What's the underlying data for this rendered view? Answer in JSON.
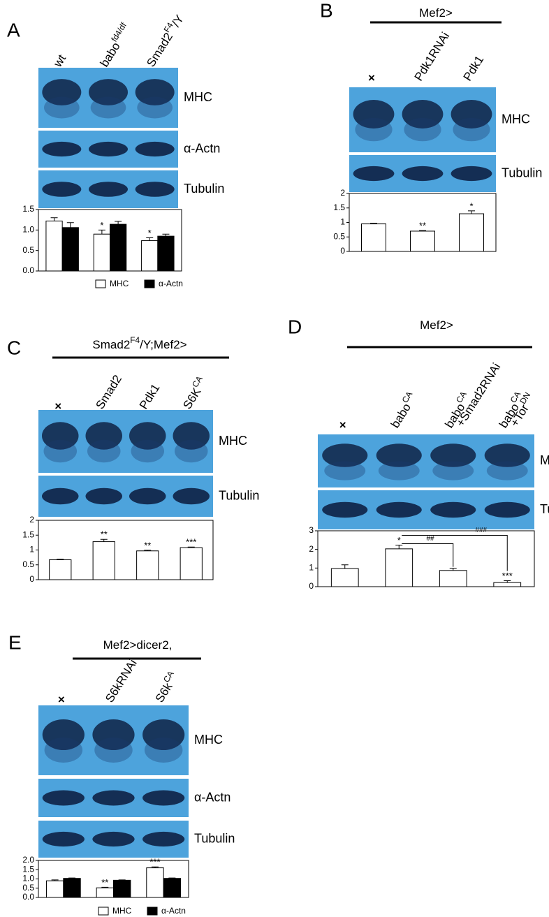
{
  "chart_data": [
    {
      "type": "bar",
      "panel": "A",
      "lanes": [
        [
          [
            {
              "text": "wt"
            }
          ]
        ],
        [
          [
            {
              "text": "babo"
            },
            {
              "sup": "fd4/df"
            }
          ]
        ],
        [
          [
            {
              "text": "Smad2"
            },
            {
              "sup": "F4"
            },
            {
              "text": "/Y"
            }
          ]
        ]
      ],
      "blots": [
        "MHC",
        "α-Actn",
        "Tubulin"
      ],
      "categories": [
        null,
        null,
        null
      ],
      "series": [
        {
          "name": "MHC",
          "color": "#ffffff",
          "values": [
            1.22,
            0.9,
            0.74
          ],
          "errors": [
            0.08,
            0.1,
            0.07
          ],
          "annotations": [
            null,
            "*",
            "*"
          ]
        },
        {
          "name": "α-Actn",
          "color": "#000000",
          "values": [
            1.06,
            1.14,
            0.85
          ],
          "errors": [
            0.12,
            0.07,
            0.05
          ]
        }
      ],
      "ylim": [
        0,
        1.5
      ],
      "yticks": [
        {
          "value": 0,
          "label": "0.0"
        },
        0.5,
        {
          "value": 1,
          "label": "1.0"
        },
        1.5
      ],
      "legend": "bottom"
    },
    {
      "type": "bar",
      "panel": "B",
      "header": [
        {
          "text": "Mef2>"
        }
      ],
      "lanes": [
        [
          [
            {
              "text": "×"
            }
          ]
        ],
        [
          [
            {
              "text": "Pdk1RNAi"
            }
          ]
        ],
        [
          [
            {
              "text": "Pdk1"
            }
          ]
        ]
      ],
      "blots": [
        "MHC",
        "Tubulin"
      ],
      "categories": [
        null,
        null,
        null
      ],
      "series": [
        {
          "color": "#ffffff",
          "values": [
            0.95,
            0.7,
            1.3
          ],
          "errors": [
            0.02,
            0.02,
            0.1
          ],
          "annotations": [
            null,
            "**",
            "*"
          ]
        }
      ],
      "ylim": [
        0,
        2
      ],
      "yticks": [
        0,
        0.5,
        1,
        1.5,
        2
      ]
    },
    {
      "type": "bar",
      "panel": "C",
      "header": [
        {
          "text": "Smad2"
        },
        {
          "sup": "F4"
        },
        {
          "text": "/Y;Mef2>"
        }
      ],
      "lanes": [
        [
          [
            {
              "text": "×"
            }
          ]
        ],
        [
          [
            {
              "text": "Smad2"
            }
          ]
        ],
        [
          [
            {
              "text": "Pdk1"
            }
          ]
        ],
        [
          [
            {
              "text": "S6K"
            },
            {
              "sup": "CA"
            }
          ]
        ]
      ],
      "blots": [
        "MHC",
        "Tubulin"
      ],
      "categories": [
        null,
        null,
        null,
        null
      ],
      "series": [
        {
          "color": "#ffffff",
          "values": [
            0.67,
            1.28,
            0.97,
            1.08
          ],
          "errors": [
            0.02,
            0.08,
            0.02,
            0.02
          ],
          "annotations": [
            null,
            "**",
            "**",
            "***"
          ]
        }
      ],
      "ylim": [
        0,
        2
      ],
      "yticks": [
        0,
        0.5,
        1,
        1.5,
        2
      ]
    },
    {
      "type": "bar",
      "panel": "D",
      "header": [
        {
          "text": "Mef2>"
        }
      ],
      "lanes": [
        [
          [
            {
              "text": "×"
            }
          ]
        ],
        [
          [
            {
              "text": "babo"
            },
            {
              "sup": "CA"
            }
          ]
        ],
        [
          [
            {
              "text": "babo"
            },
            {
              "sup": "CA"
            }
          ],
          [
            {
              "text": "+Smad2RNAi"
            }
          ]
        ],
        [
          [
            {
              "text": "babo"
            },
            {
              "sup": "CA"
            }
          ],
          [
            {
              "text": "+Tor"
            },
            {
              "sup": "DN"
            }
          ]
        ]
      ],
      "blots": [
        "MHC",
        "Tubulin"
      ],
      "categories": [
        null,
        null,
        null,
        null
      ],
      "series": [
        {
          "color": "#ffffff",
          "values": [
            0.97,
            2.03,
            0.87,
            0.22
          ],
          "errors": [
            0.2,
            0.2,
            0.12,
            0.1
          ],
          "annotations": [
            null,
            "*",
            null,
            "***"
          ]
        }
      ],
      "comparisons": [
        "##",
        "###"
      ],
      "ylim": [
        0,
        3
      ],
      "yticks": [
        0,
        1,
        2,
        3
      ]
    },
    {
      "type": "bar",
      "panel": "E",
      "header": [
        {
          "text": "Mef2>dicer2,"
        }
      ],
      "lanes": [
        [
          [
            {
              "text": "×"
            }
          ]
        ],
        [
          [
            {
              "text": "S6kRNAi"
            }
          ]
        ],
        [
          [
            {
              "text": "S6k"
            },
            {
              "sup": "CA"
            }
          ]
        ]
      ],
      "blots": [
        "MHC",
        "α-Actn",
        "Tubulin"
      ],
      "categories": [
        null,
        null,
        null
      ],
      "series": [
        {
          "name": "MHC",
          "color": "#ffffff",
          "values": [
            0.9,
            0.52,
            1.6
          ],
          "errors": [
            0.05,
            0.03,
            0.05
          ],
          "annotations": [
            null,
            "**",
            "***"
          ]
        },
        {
          "name": "α-Actn",
          "color": "#000000",
          "values": [
            1.03,
            0.93,
            1.03
          ],
          "errors": [
            0.02,
            0.02,
            0.02
          ]
        }
      ],
      "ylim": [
        0,
        2
      ],
      "yticks": [
        {
          "value": 0,
          "label": "0.0"
        },
        0.5,
        {
          "value": 1,
          "label": "1.0"
        },
        1.5,
        {
          "value": 2,
          "label": "2.0"
        }
      ],
      "legend": "bottom"
    }
  ]
}
